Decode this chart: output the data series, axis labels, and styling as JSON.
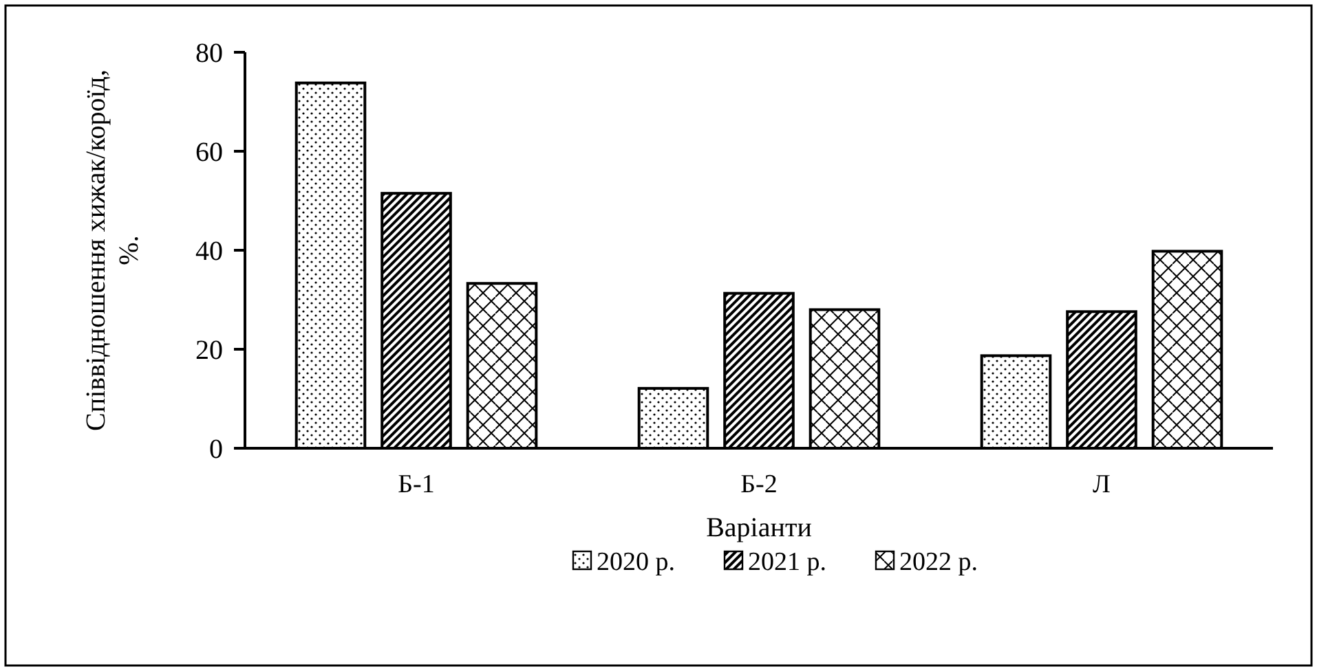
{
  "chart_data": {
    "type": "bar",
    "xlabel": "Варіанти",
    "ylabel": "Співвідношення хижак/короїд, %.",
    "categories": [
      "Б-1",
      "Б-2",
      "Л"
    ],
    "series": [
      {
        "name": "2020 р.",
        "color": "#000000",
        "values": [
          73.8,
          12.1,
          18.7
        ]
      },
      {
        "name": "2021 р.",
        "color": "#000000",
        "values": [
          51.5,
          31.3,
          27.6
        ]
      },
      {
        "name": "2022 р.",
        "color": "#000000",
        "values": [
          33.3,
          28,
          39.8
        ]
      }
    ],
    "ylim": [
      0,
      80
    ],
    "yticks": [
      0,
      20,
      40,
      60,
      80
    ],
    "grid": false,
    "legend": "bottom"
  }
}
